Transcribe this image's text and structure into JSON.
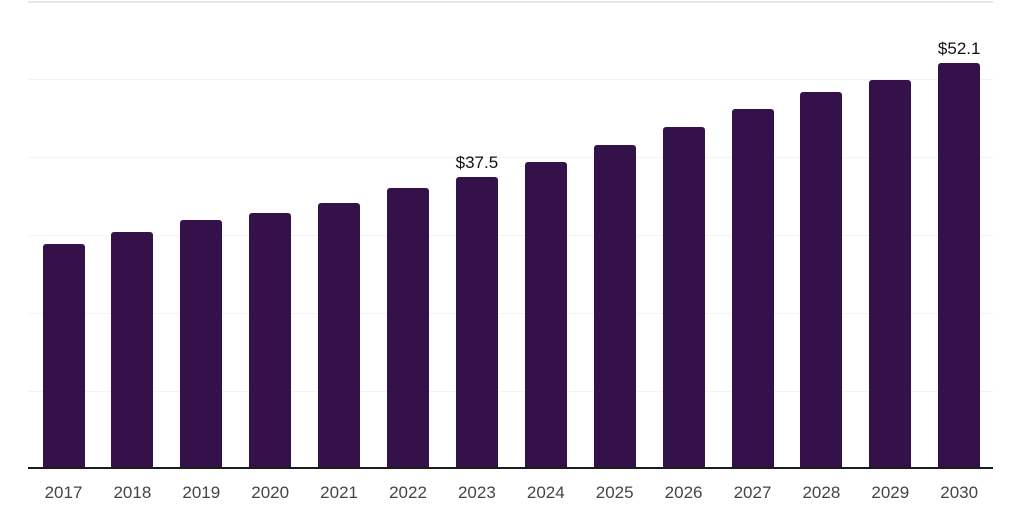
{
  "chart_data": {
    "type": "bar",
    "title": "",
    "xlabel": "",
    "ylabel": "",
    "categories": [
      "2017",
      "2018",
      "2019",
      "2020",
      "2021",
      "2022",
      "2023",
      "2024",
      "2025",
      "2026",
      "2027",
      "2028",
      "2029",
      "2030"
    ],
    "values": [
      28.9,
      30.4,
      31.9,
      32.8,
      34.1,
      36.0,
      37.5,
      39.4,
      41.6,
      43.9,
      46.1,
      48.3,
      49.9,
      52.1
    ],
    "data_labels": [
      {
        "index": 6,
        "text": "$37.5"
      },
      {
        "index": 13,
        "text": "$52.1"
      }
    ],
    "ylim": [
      0,
      60
    ],
    "grid_step": 10,
    "grid": "horizontal-only",
    "legend": "none",
    "y_tick_labels_visible": false,
    "colors": {
      "bar": "#341249",
      "axis_line": "#1c1c1c",
      "gridline": "#f3f3f3",
      "top_gridline": "#e7e7e7",
      "tick_label": "#454545",
      "value_label": "#111111",
      "background": "#ffffff"
    }
  }
}
